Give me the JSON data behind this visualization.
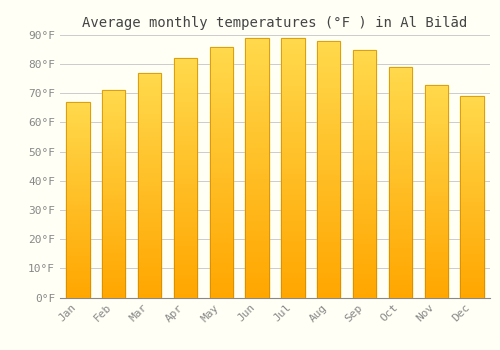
{
  "title": "Average monthly temperatures (°F ) in Al Bilād",
  "months": [
    "Jan",
    "Feb",
    "Mar",
    "Apr",
    "May",
    "Jun",
    "Jul",
    "Aug",
    "Sep",
    "Oct",
    "Nov",
    "Dec"
  ],
  "values": [
    67,
    71,
    77,
    82,
    86,
    89,
    89,
    88,
    85,
    79,
    73,
    69
  ],
  "bar_color_top": "#FFD966",
  "bar_color_bottom": "#FFA500",
  "bar_edge_color": "#CC8800",
  "background_color": "#FFFFF5",
  "grid_color": "#CCCCCC",
  "ylim": [
    0,
    90
  ],
  "yticks": [
    0,
    10,
    20,
    30,
    40,
    50,
    60,
    70,
    80,
    90
  ],
  "ytick_labels": [
    "0°F",
    "10°F",
    "20°F",
    "30°F",
    "40°F",
    "50°F",
    "60°F",
    "70°F",
    "80°F",
    "90°F"
  ],
  "title_fontsize": 10,
  "tick_fontsize": 8,
  "font_family": "monospace",
  "bar_width": 0.65
}
